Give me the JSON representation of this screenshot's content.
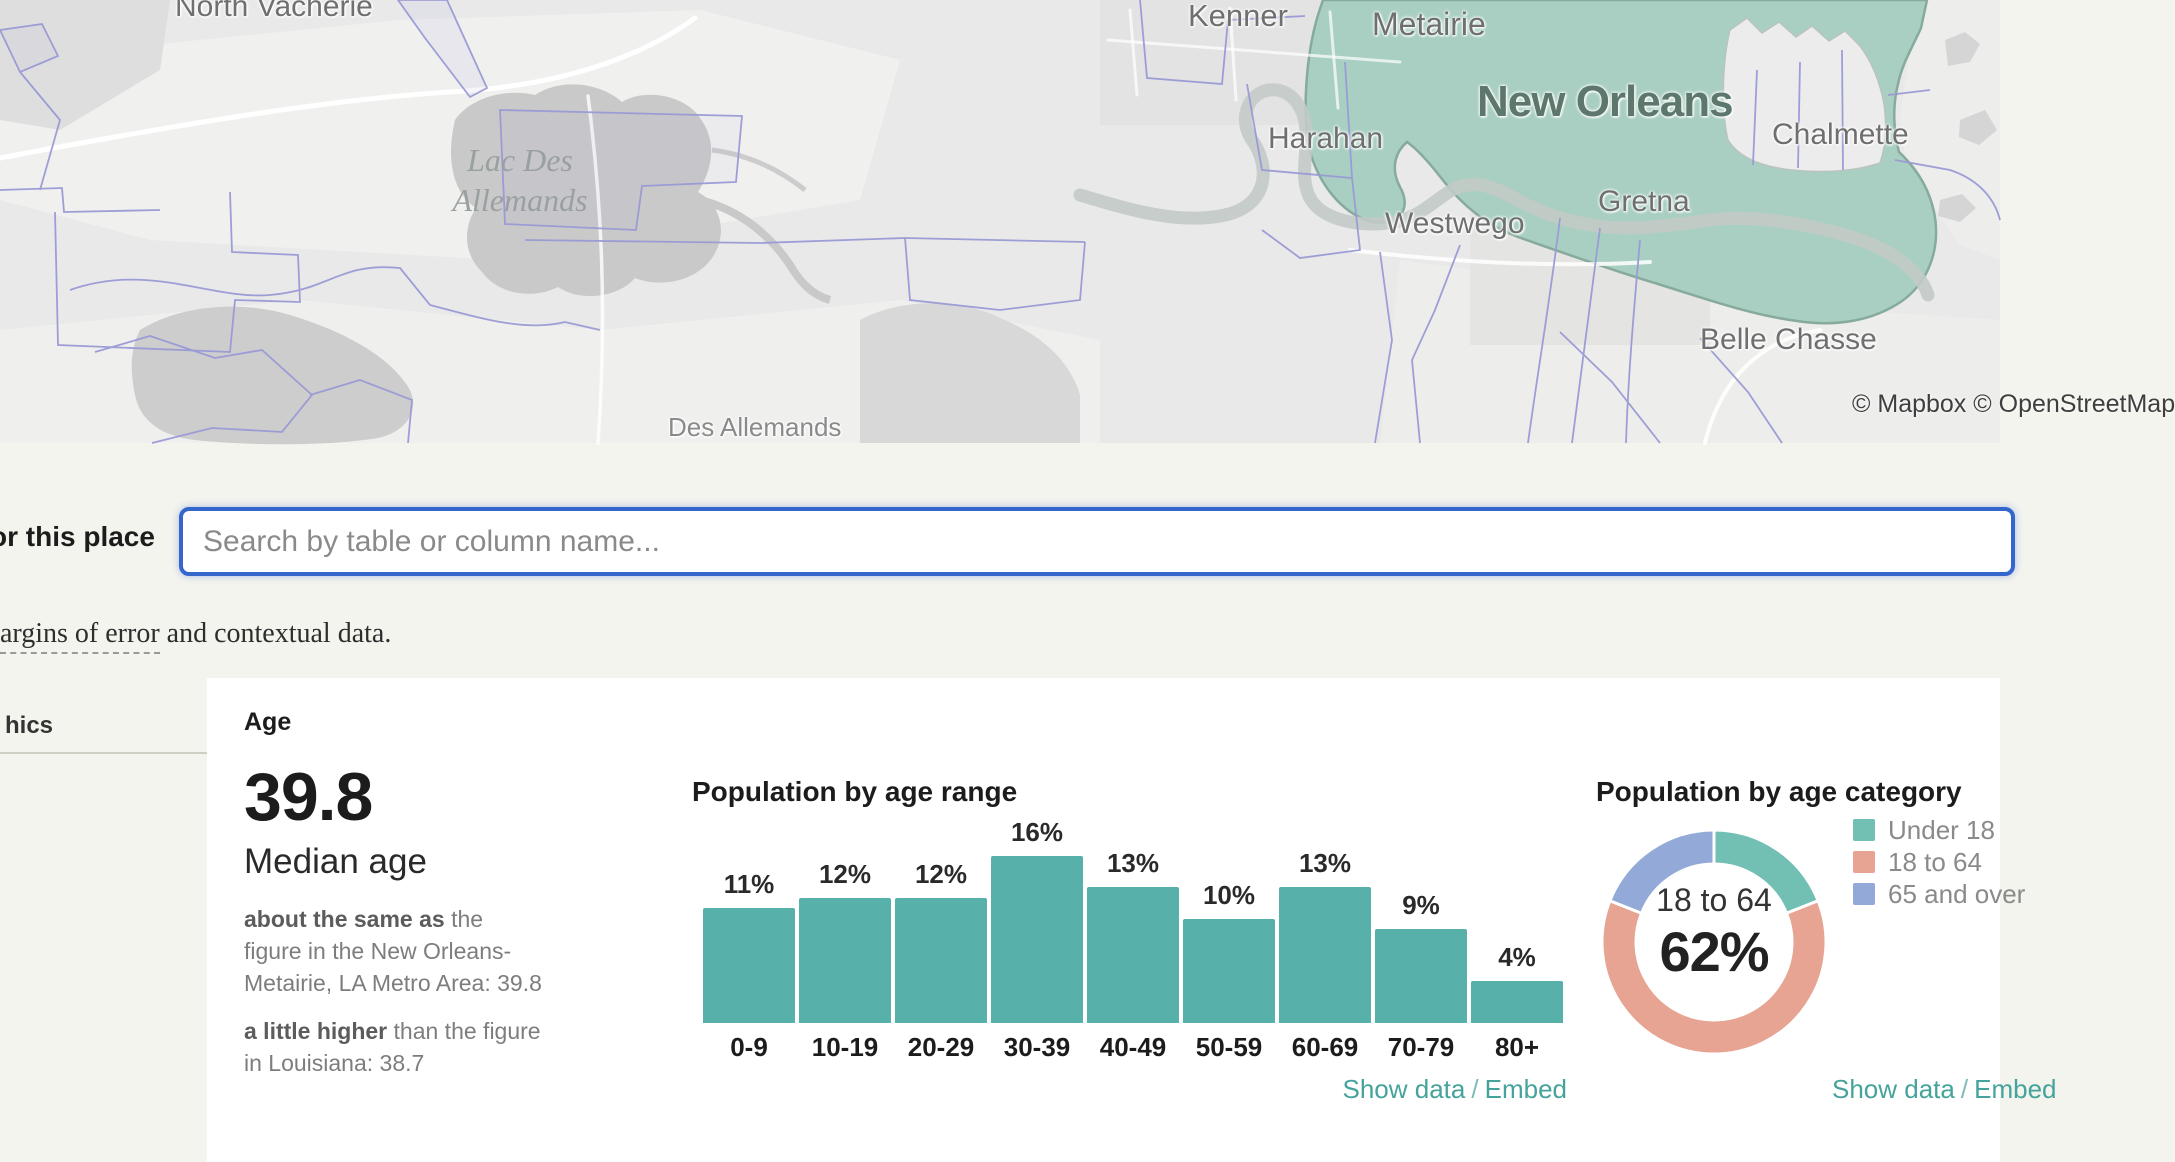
{
  "page": {
    "background": "#f4f4ee"
  },
  "map": {
    "attribution": "© Mapbox © OpenStreetMap",
    "highlight_color": "#a9cfc2",
    "boundary_color": "#9a9ad6",
    "labels": {
      "north_vacherie": "North Vacherie",
      "kenner": "Kenner",
      "metairie": "Metairie",
      "new_orleans": "New Orleans",
      "chalmette": "Chalmette",
      "harahan": "Harahan",
      "gretna": "Gretna",
      "westwego": "Westwego",
      "belle_chasse": "Belle Chasse",
      "des_allemands": "Des Allemands",
      "lake_line1": "Lac Des",
      "lake_line2": "Allemands"
    }
  },
  "search": {
    "label_fragment": "or this place",
    "placeholder": "Search by table or column name...",
    "focus_border": "#3566cc"
  },
  "note": {
    "underlined_fragment": "argins of error",
    "rest": " and contextual data."
  },
  "sidebar": {
    "item_fragment": "hics"
  },
  "age": {
    "heading": "Age",
    "stat_value": "39.8",
    "stat_label": "Median age",
    "comparisons": [
      {
        "lead": "about the same as",
        "rest": " the figure in the New Orleans-Metairie, LA Metro Area: 39.8"
      },
      {
        "lead": "a little higher",
        "rest": " than the figure in Louisiana: 38.7"
      }
    ]
  },
  "links": {
    "show_data": "Show data",
    "separator": "/",
    "embed": "Embed"
  },
  "chart_data": [
    {
      "type": "bar",
      "title": "Population by age range",
      "categories": [
        "0-9",
        "10-19",
        "20-29",
        "30-39",
        "40-49",
        "50-59",
        "60-69",
        "70-79",
        "80+"
      ],
      "values": [
        11,
        12,
        12,
        16,
        13,
        10,
        13,
        9,
        4
      ],
      "unit": "%",
      "ylim": [
        0,
        16
      ],
      "bar_color": "#58b0ab",
      "grid": false,
      "legend_position": "none"
    },
    {
      "type": "donut",
      "title": "Population by age category",
      "center_label": "18 to 64",
      "center_value": "62%",
      "segments": [
        {
          "label": "Under 18",
          "value": 19,
          "color": "#72bfb4"
        },
        {
          "label": "18 to 64",
          "value": 62,
          "color": "#e7a493"
        },
        {
          "label": "65 and over",
          "value": 19,
          "color": "#93aad8"
        }
      ],
      "legend_position": "right"
    }
  ]
}
